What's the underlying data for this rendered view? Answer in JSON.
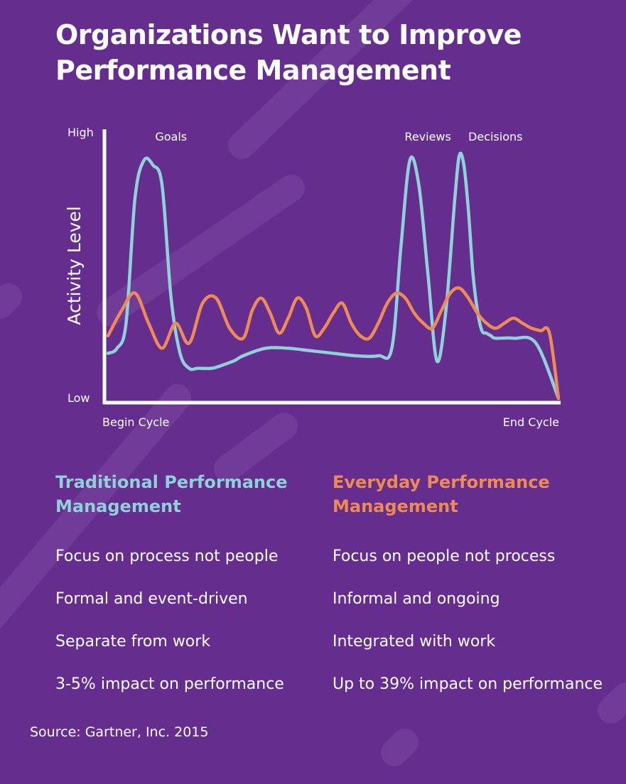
{
  "title": [
    "Organizations Want to Improve",
    "Performance Management"
  ],
  "colors": {
    "background": "#642d8e",
    "stripe": "#7a4aa1",
    "traditional": "#8fd0d9",
    "everyday": "#ee8a55",
    "axis": "#ffffff"
  },
  "chart_data": {
    "type": "line",
    "title": "",
    "xlabel": "",
    "ylabel": "Activity Level",
    "x_tick_labels": [
      "Begin Cycle",
      "End Cycle"
    ],
    "y_tick_labels": [
      "Low",
      "High"
    ],
    "xlim": [
      0,
      100
    ],
    "ylim": [
      0,
      100
    ],
    "grid": false,
    "legend": "none",
    "series": [
      {
        "key": "traditional",
        "x": [
          0,
          2,
          4,
          6,
          8,
          10,
          12,
          14,
          16,
          18,
          20,
          23,
          25,
          28,
          30,
          35,
          40,
          45,
          50,
          55,
          60,
          63,
          65,
          67,
          69,
          71,
          73,
          75,
          77,
          78,
          79,
          80,
          81,
          82,
          83,
          84,
          85,
          86,
          90,
          95,
          100
        ],
        "y": [
          18,
          20,
          30,
          80,
          95,
          93,
          85,
          40,
          18,
          12,
          12,
          12,
          13,
          15,
          17,
          20,
          20,
          19,
          18,
          17,
          17,
          20,
          60,
          95,
          85,
          50,
          15,
          35,
          80,
          97,
          93,
          75,
          50,
          35,
          27,
          26,
          25,
          24,
          24,
          22,
          0
        ]
      },
      {
        "key": "everyday",
        "x": [
          0,
          3,
          6,
          9,
          12,
          15,
          18,
          21,
          24,
          27,
          30,
          32,
          34,
          36,
          38,
          40,
          42,
          44,
          46,
          48,
          50,
          52,
          54,
          56,
          58,
          60,
          62,
          64,
          66,
          68,
          70,
          72,
          74,
          76,
          78,
          80,
          82,
          84,
          86,
          88,
          90,
          92,
          94,
          96,
          98,
          100
        ],
        "y": [
          25,
          35,
          42,
          30,
          20,
          30,
          22,
          38,
          40,
          28,
          24,
          35,
          40,
          34,
          26,
          32,
          40,
          36,
          25,
          28,
          34,
          38,
          30,
          25,
          24,
          30,
          38,
          42,
          40,
          34,
          30,
          28,
          35,
          42,
          44,
          40,
          34,
          30,
          28,
          30,
          32,
          30,
          28,
          27,
          26,
          0
        ]
      }
    ],
    "annotations": [
      {
        "text": "Goals",
        "x": 14,
        "y": 100
      },
      {
        "text": "Reviews",
        "x": 71,
        "y": 100
      },
      {
        "text": "Decisions",
        "x": 86,
        "y": 100
      }
    ]
  },
  "traditional": {
    "heading": [
      "Traditional Performance",
      "Management"
    ],
    "items": [
      "Focus on process not people",
      "Formal and event-driven",
      "Separate from work",
      "3-5% impact on performance"
    ]
  },
  "everyday": {
    "heading": [
      "Everyday Performance",
      "Management"
    ],
    "items": [
      "Focus on people not process",
      "Informal and ongoing",
      "Integrated with work",
      "Up to 39% impact on performance"
    ]
  },
  "source": "Source: Gartner, Inc. 2015"
}
